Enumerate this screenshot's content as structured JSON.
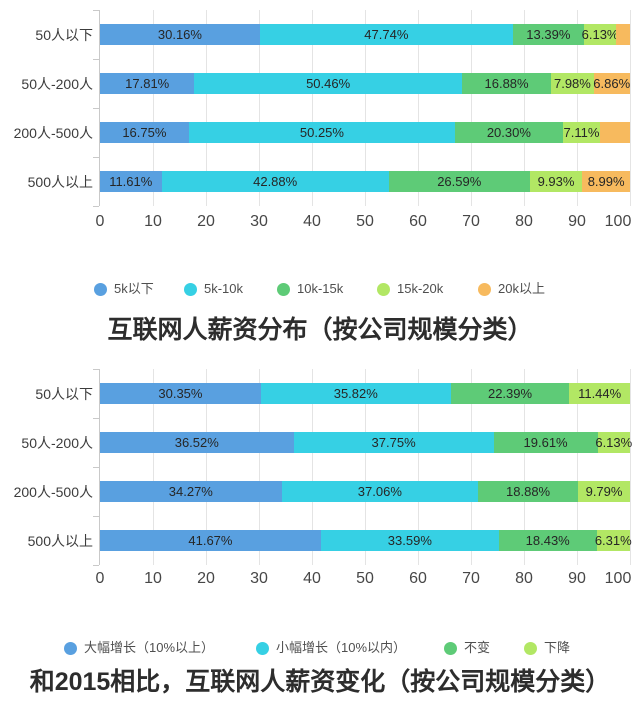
{
  "page": {
    "background": "#ffffff"
  },
  "chart_data": [
    {
      "type": "bar",
      "orientation": "horizontal-stacked",
      "title": "互联网人薪资分布（按公司规模分类）",
      "categories": [
        "50人以下",
        "50人-200人",
        "200人-500人",
        "500人以上"
      ],
      "xlim": [
        0,
        100
      ],
      "tick_labels": [
        "0",
        "10",
        "20",
        "30",
        "40",
        "50",
        "60",
        "70",
        "80",
        "90",
        "100"
      ],
      "legend_position": "bottom",
      "grid": true,
      "series": [
        {
          "name": "5k以下",
          "color": "#59A0E0",
          "values": [
            30.16,
            17.81,
            16.75,
            11.61
          ],
          "labels": [
            "30.16%",
            "17.81%",
            "16.75%",
            "11.61%"
          ]
        },
        {
          "name": "5k-10k",
          "color": "#36D0E4",
          "values": [
            47.74,
            50.46,
            50.25,
            42.88
          ],
          "labels": [
            "47.74%",
            "50.46%",
            "50.25%",
            "42.88%"
          ]
        },
        {
          "name": "10k-15k",
          "color": "#5ECB77",
          "values": [
            13.39,
            16.88,
            20.3,
            26.59
          ],
          "labels": [
            "13.39%",
            "16.88%",
            "20.30%",
            "26.59%"
          ]
        },
        {
          "name": "15k-20k",
          "color": "#B2E764",
          "values": [
            6.13,
            7.98,
            7.11,
            9.93
          ],
          "labels": [
            "6.13%",
            "7.98%",
            "7.11%",
            "9.93%"
          ]
        },
        {
          "name": "20k以上",
          "color": "#F7BA5E",
          "values": [
            2.58,
            6.86,
            5.59,
            8.99
          ],
          "labels": [
            "",
            "6.86%",
            "",
            "8.99%"
          ]
        }
      ]
    },
    {
      "type": "bar",
      "orientation": "horizontal-stacked",
      "title": "和2015相比，互联网人薪资变化（按公司规模分类）",
      "categories": [
        "50人以下",
        "50人-200人",
        "200人-500人",
        "500人以上"
      ],
      "xlim": [
        0,
        100
      ],
      "tick_labels": [
        "0",
        "10",
        "20",
        "30",
        "40",
        "50",
        "60",
        "70",
        "80",
        "90",
        "100"
      ],
      "legend_position": "bottom",
      "grid": true,
      "series": [
        {
          "name": "大幅增长（10%以上）",
          "color": "#59A0E0",
          "values": [
            30.35,
            36.52,
            34.27,
            41.67
          ],
          "labels": [
            "30.35%",
            "36.52%",
            "34.27%",
            "41.67%"
          ]
        },
        {
          "name": "小幅增长（10%以内）",
          "color": "#36D0E4",
          "values": [
            35.82,
            37.75,
            37.06,
            33.59
          ],
          "labels": [
            "35.82%",
            "37.75%",
            "37.06%",
            "33.59%"
          ]
        },
        {
          "name": "不变",
          "color": "#5ECB77",
          "values": [
            22.39,
            19.61,
            18.88,
            18.43
          ],
          "labels": [
            "22.39%",
            "19.61%",
            "18.88%",
            "18.43%"
          ]
        },
        {
          "name": "下降",
          "color": "#B2E764",
          "values": [
            11.44,
            6.13,
            9.79,
            6.31
          ],
          "labels": [
            "11.44%",
            "6.13%",
            "9.79%",
            "6.31%"
          ]
        }
      ]
    }
  ]
}
